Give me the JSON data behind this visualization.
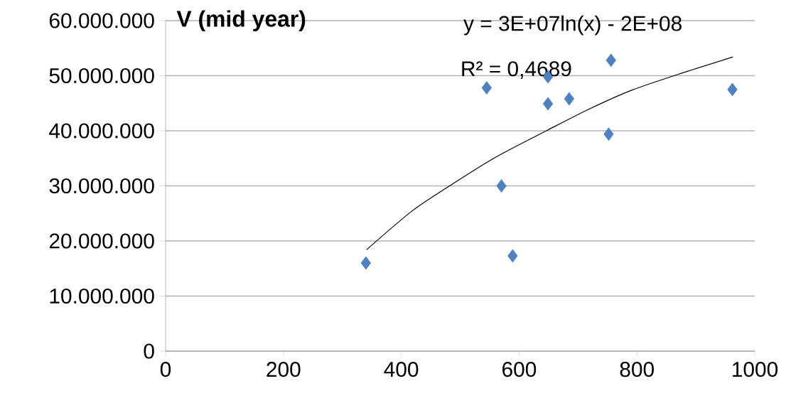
{
  "chart_data": {
    "type": "scatter",
    "title": "V (mid year)",
    "annotations": [
      "y = 3E+07ln(x) - 2E+08",
      "R² = 0,4689"
    ],
    "xlim": [
      0,
      1000
    ],
    "xticks": [
      0,
      200,
      400,
      600,
      800,
      1000
    ],
    "ylim": [
      0,
      60000000
    ],
    "yticks": [
      0,
      {
        "value": 10000000,
        "label": "10.000.000"
      },
      {
        "value": 20000000,
        "label": "20.000.000"
      },
      {
        "value": 30000000,
        "label": "30.000.000"
      },
      {
        "value": 40000000,
        "label": "40.000.000"
      },
      {
        "value": 50000000,
        "label": "50.000.000"
      },
      {
        "value": 60000000,
        "label": "60.000.000"
      }
    ],
    "grid": "y",
    "marker": "diamond",
    "series": [
      {
        "type": "scatter",
        "color": "#4f81bd",
        "x": [
          340,
          545,
          570,
          589,
          649,
          649,
          685,
          752,
          756,
          962
        ],
        "values": [
          16000000,
          47800000,
          30000000,
          17300000,
          49800000,
          44900000,
          45800000,
          39400000,
          52800000,
          47500000
        ]
      },
      {
        "type": "line",
        "color": "#000000",
        "marker": "none",
        "line_style": "solid",
        "x": [
          341,
          419,
          482,
          560,
          648,
          720,
          792,
          880,
          963
        ],
        "values": [
          18400000,
          25500000,
          30000000,
          35200000,
          40100000,
          44000000,
          47400000,
          50600000,
          53400000
        ]
      }
    ]
  }
}
